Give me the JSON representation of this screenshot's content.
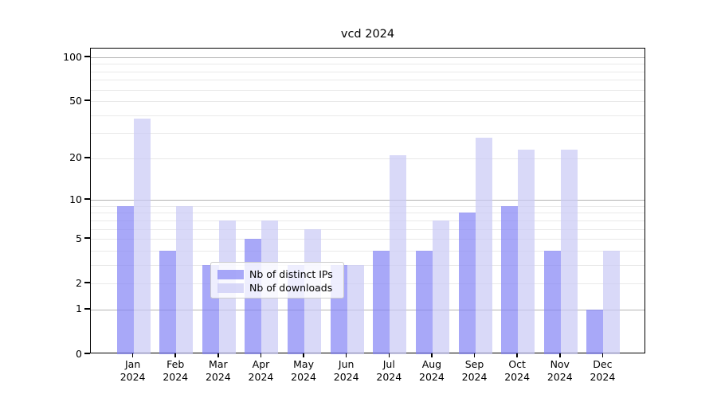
{
  "chart_data": {
    "type": "bar",
    "title": "vcd 2024",
    "categories": [
      "Jan",
      "Feb",
      "Mar",
      "Apr",
      "May",
      "Jun",
      "Jul",
      "Aug",
      "Sep",
      "Oct",
      "Nov",
      "Dec"
    ],
    "category_year": "2024",
    "series": [
      {
        "name": "Nb of distinct IPs",
        "color": "#8383f5",
        "values": [
          9,
          4,
          3,
          5,
          3,
          3,
          4,
          4,
          8,
          9,
          4,
          1
        ]
      },
      {
        "name": "Nb of downloads",
        "color": "#c9c9f5",
        "values": [
          38,
          9,
          7,
          7,
          6,
          3,
          21,
          7,
          28,
          23,
          23,
          4
        ]
      }
    ],
    "bar_alpha": 0.7,
    "yscale": "log1p",
    "ylim": [
      0,
      115
    ],
    "y_ticks": [
      100,
      50,
      20,
      10,
      5,
      2,
      1,
      0
    ],
    "gridlines_major": [
      100,
      10,
      1
    ],
    "gridlines_minor": [
      90,
      80,
      70,
      60,
      50,
      40,
      30,
      20,
      9,
      8,
      7,
      6,
      5,
      4,
      3,
      2
    ],
    "grid": true,
    "legend_position": "lower-center",
    "colors": {
      "grid_major": "#b3b3b3",
      "grid_minor": "#e9e9e9",
      "axis": "#000000",
      "text": "#000000",
      "legend_border": "#cccccc"
    }
  }
}
